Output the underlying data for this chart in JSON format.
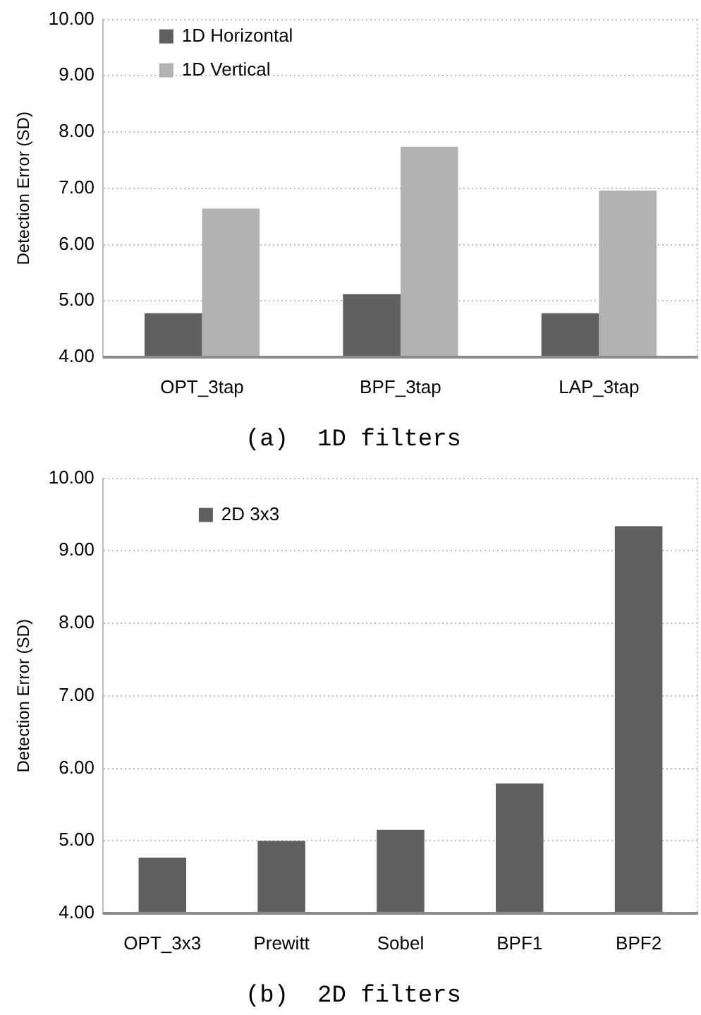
{
  "chart_data": [
    {
      "type": "bar",
      "title": "(a)  1D filters",
      "ylabel": "Detection Error (SD)",
      "categories": [
        "OPT_3tap",
        "BPF_3tap",
        "LAP_3tap"
      ],
      "series": [
        {
          "name": "1D Horizontal",
          "color": "#606060",
          "values": [
            4.78,
            5.12,
            4.78
          ]
        },
        {
          "name": "1D Vertical",
          "color": "#b2b2b2",
          "values": [
            6.64,
            7.74,
            6.96
          ]
        }
      ],
      "ylim": [
        4,
        10
      ],
      "yticks": [
        {
          "value": 4,
          "label": "4.00"
        },
        {
          "value": 5,
          "label": "5.00"
        },
        {
          "value": 6,
          "label": "6.00"
        },
        {
          "value": 7,
          "label": "7.00"
        },
        {
          "value": 8,
          "label": "8.00"
        },
        {
          "value": 9,
          "label": "9.00"
        },
        {
          "value": 10,
          "label": "10.00"
        }
      ],
      "grid": "y",
      "legend": "top left"
    },
    {
      "type": "bar",
      "title": "(b)  2D filters",
      "ylabel": "Detection Error (SD)",
      "categories": [
        "OPT_3x3",
        "Prewitt",
        "Sobel",
        "BPF1",
        "BPF2"
      ],
      "series": [
        {
          "name": "2D 3x3",
          "color": "#606060",
          "values": [
            4.77,
            5.0,
            5.15,
            5.79,
            9.34
          ]
        }
      ],
      "ylim": [
        4,
        10
      ],
      "yticks": [
        {
          "value": 4,
          "label": "4.00"
        },
        {
          "value": 5,
          "label": "5.00"
        },
        {
          "value": 6,
          "label": "6.00"
        },
        {
          "value": 7,
          "label": "7.00"
        },
        {
          "value": 8,
          "label": "8.00"
        },
        {
          "value": 9,
          "label": "9.00"
        },
        {
          "value": 10,
          "label": "10.00"
        }
      ],
      "grid": "y",
      "legend": "top left"
    }
  ]
}
